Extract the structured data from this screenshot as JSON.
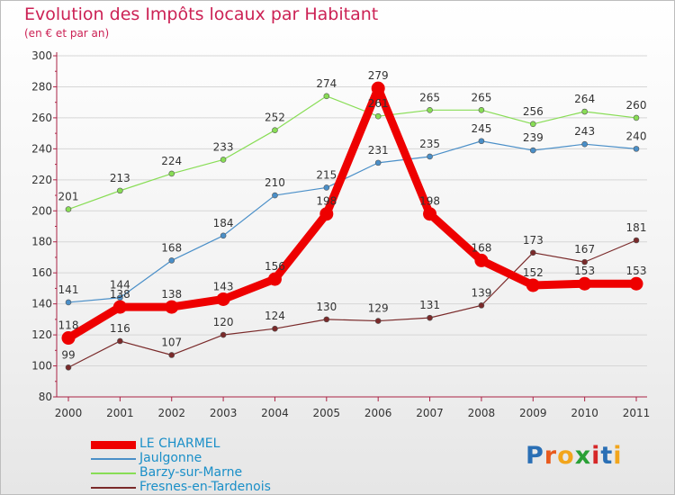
{
  "title": "Evolution des Impôts locaux par Habitant",
  "subtitle": "(en € et par an)",
  "logo": {
    "text": "Proxiti",
    "letters": [
      "P",
      "r",
      "o",
      "x",
      "i",
      "t",
      "i"
    ],
    "colors": [
      "#2a6fb5",
      "#e85a1e",
      "#f2a51c",
      "#2aa036",
      "#d62728",
      "#2a6fb5",
      "#f2a51c"
    ]
  },
  "chart_data": {
    "type": "line",
    "title": "Evolution des Impôts locaux par Habitant",
    "subtitle": "(en € et par an)",
    "xlabel": "",
    "ylabel": "",
    "ylim": [
      80,
      300
    ],
    "yticks": [
      80,
      100,
      120,
      140,
      160,
      180,
      200,
      220,
      240,
      260,
      280,
      300
    ],
    "grid": "horizontal",
    "categories": [
      "2000",
      "2001",
      "2002",
      "2003",
      "2004",
      "2005",
      "2006",
      "2007",
      "2008",
      "2009",
      "2010",
      "2011"
    ],
    "series": [
      {
        "name": "LE CHARMEL",
        "color": "#ee0000",
        "values": [
          118,
          138,
          138,
          143,
          156,
          198,
          279,
          198,
          168,
          152,
          153,
          153
        ]
      },
      {
        "name": "Jaulgonne",
        "color": "#4a8fc8",
        "values": [
          141,
          144,
          168,
          184,
          210,
          215,
          231,
          235,
          245,
          239,
          243,
          240
        ]
      },
      {
        "name": "Barzy-sur-Marne",
        "color": "#88dd55",
        "values": [
          201,
          213,
          224,
          233,
          252,
          274,
          261,
          265,
          265,
          256,
          264,
          260
        ]
      },
      {
        "name": "Fresnes-en-Tardenois",
        "color": "#7a2a2a",
        "values": [
          99,
          116,
          107,
          120,
          124,
          130,
          129,
          131,
          139,
          173,
          167,
          181
        ]
      }
    ]
  }
}
